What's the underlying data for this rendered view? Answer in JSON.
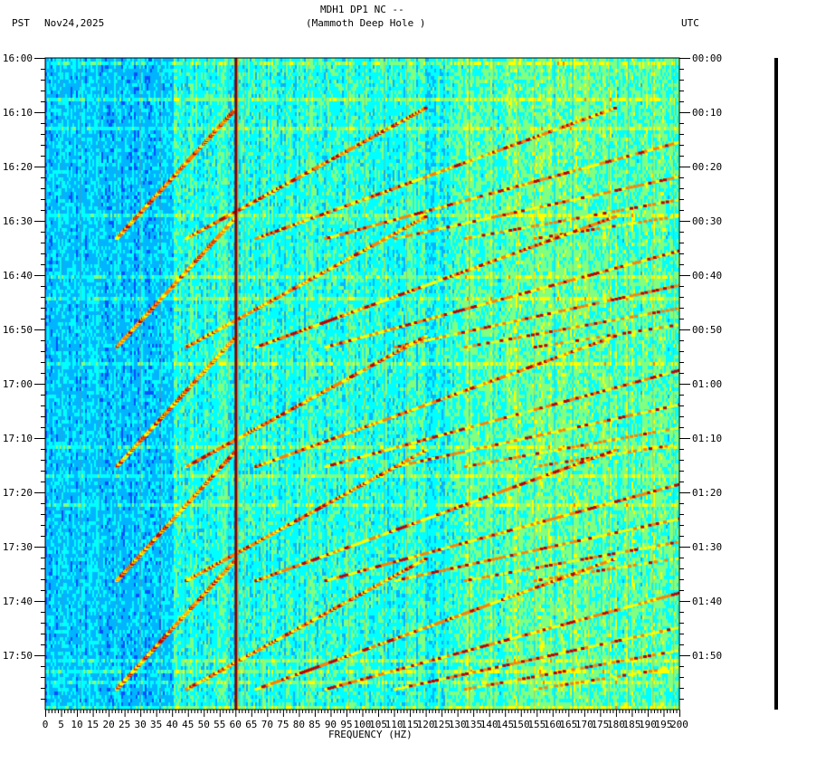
{
  "header": {
    "station": "MDH1 DP1 NC --",
    "site": "(Mammoth Deep Hole )",
    "left_tz": "PST",
    "date": "Nov24,2025",
    "right_tz": "UTC"
  },
  "chart_data": {
    "type": "heatmap",
    "title": "MDH1 DP1 NC -- (Mammoth Deep Hole )",
    "xlabel": "FREQUENCY (HZ)",
    "ylabel_left": "PST",
    "ylabel_right": "UTC",
    "xlim": [
      0,
      200
    ],
    "x_ticks": [
      "0",
      "5",
      "10",
      "15",
      "20",
      "25",
      "30",
      "35",
      "40",
      "45",
      "50",
      "55",
      "60",
      "65",
      "70",
      "75",
      "80",
      "85",
      "90",
      "95",
      "100",
      "105",
      "110",
      "115",
      "120",
      "125",
      "130",
      "135",
      "140",
      "145",
      "150",
      "155",
      "160",
      "165",
      "170",
      "175",
      "180",
      "185",
      "190",
      "195",
      "200"
    ],
    "y_ticks_left": [
      "16:00",
      "16:10",
      "16:20",
      "16:30",
      "16:40",
      "16:50",
      "17:00",
      "17:10",
      "17:20",
      "17:30",
      "17:40",
      "17:50"
    ],
    "y_ticks_right": [
      "00:00",
      "00:10",
      "00:20",
      "00:30",
      "00:40",
      "00:50",
      "01:00",
      "01:10",
      "01:20",
      "01:30",
      "01:40",
      "01:50"
    ],
    "time_range_minutes": [
      0,
      120
    ],
    "colormap": [
      "#0000a0",
      "#0050ff",
      "#00b4ff",
      "#00ffff",
      "#80ff80",
      "#ffff00",
      "#ff8000",
      "#c00000"
    ],
    "persistent_lines_hz": [
      60
    ],
    "sweep_event_start_minutes": [
      33,
      53,
      75,
      96,
      116
    ],
    "sweep_fundamental_hz": 22
  }
}
